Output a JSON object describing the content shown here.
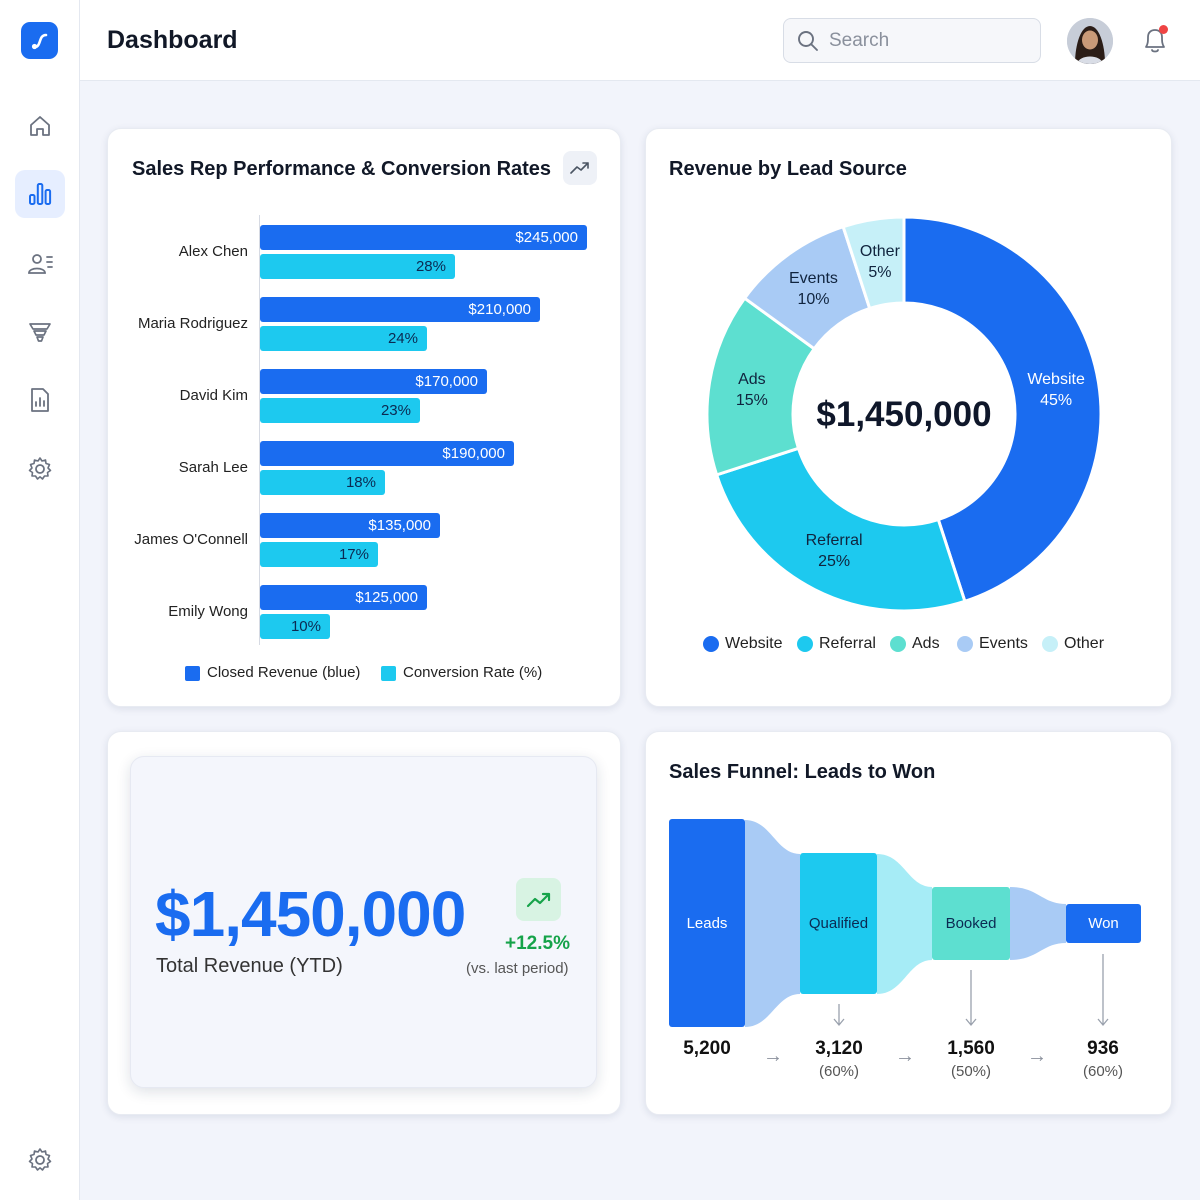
{
  "header": {
    "title": "Dashboard",
    "search_placeholder": "Search"
  },
  "sidebar": {
    "items": [
      {
        "icon": "home-icon",
        "active": false
      },
      {
        "icon": "bar-chart-icon",
        "active": true
      },
      {
        "icon": "users-icon",
        "active": false
      },
      {
        "icon": "funnel-icon",
        "active": false
      },
      {
        "icon": "report-icon",
        "active": false
      },
      {
        "icon": "gear-icon",
        "active": false
      }
    ],
    "bottom_icon": "gear-icon"
  },
  "colors": {
    "primary": "#1a6cf0",
    "cyan": "#1dc9ef",
    "teal": "#5ddfd0",
    "light_blue": "#a9cbf5",
    "pale_cyan": "#c6f0f8",
    "positive": "#16a34a"
  },
  "rep_performance": {
    "title": "Sales Rep Performance & Conversion Rates",
    "legend": [
      "Closed Revenue (blue)",
      "Conversion Rate (%)"
    ],
    "reps": [
      {
        "name": "Alex Chen",
        "revenue_label": "$245,000",
        "conversion_label": "28%"
      },
      {
        "name": "Maria Rodriguez",
        "revenue_label": "$210,000",
        "conversion_label": "24%"
      },
      {
        "name": "David Kim",
        "revenue_label": "$170,000",
        "conversion_label": "23%"
      },
      {
        "name": "Sarah Lee",
        "revenue_label": "$190,000",
        "conversion_label": "18%"
      },
      {
        "name": "James O'Connell",
        "revenue_label": "$135,000",
        "conversion_label": "17%"
      },
      {
        "name": "Emily Wong",
        "revenue_label": "$125,000",
        "conversion_label": "10%"
      }
    ]
  },
  "revenue_by_source": {
    "title": "Revenue by Lead Source",
    "center_label": "$1,450,000",
    "slices": [
      {
        "name": "Website",
        "pct_label": "45%"
      },
      {
        "name": "Referral",
        "pct_label": "25%"
      },
      {
        "name": "Ads",
        "pct_label": "15%"
      },
      {
        "name": "Events",
        "pct_label": "10%"
      },
      {
        "name": "Other",
        "pct_label": "5%"
      }
    ],
    "legend": [
      "Website",
      "Referral",
      "Ads",
      "Events",
      "Other"
    ]
  },
  "kpi": {
    "value": "$1,450,000",
    "label": "Total Revenue (YTD)",
    "change": "+12.5%",
    "note": "(vs. last period)",
    "trend_icon": "trend-up-icon"
  },
  "funnel": {
    "title": "Sales Funnel: Leads to Won",
    "stages": [
      {
        "name": "Leads",
        "count": "5,200",
        "pct": ""
      },
      {
        "name": "Qualified",
        "count": "3,120",
        "pct": "(60%)"
      },
      {
        "name": "Booked",
        "count": "1,560",
        "pct": "(50%)"
      },
      {
        "name": "Won",
        "count": "936",
        "pct": "(60%)"
      }
    ]
  },
  "chart_data": [
    {
      "type": "bar",
      "orientation": "horizontal",
      "title": "Sales Rep Performance & Conversion Rates",
      "categories": [
        "Alex Chen",
        "Maria Rodriguez",
        "David Kim",
        "Sarah Lee",
        "James O'Connell",
        "Emily Wong"
      ],
      "series": [
        {
          "name": "Closed Revenue (blue)",
          "values": [
            245000,
            210000,
            170000,
            190000,
            135000,
            125000
          ]
        },
        {
          "name": "Conversion Rate (%)",
          "values": [
            28,
            24,
            23,
            18,
            17,
            10
          ]
        }
      ],
      "legend": "bottom"
    },
    {
      "type": "pie",
      "donut": true,
      "title": "Revenue by Lead Source",
      "categories": [
        "Website",
        "Referral",
        "Ads",
        "Events",
        "Other"
      ],
      "values": [
        45,
        25,
        15,
        10,
        5
      ],
      "center_label": "$1,450,000",
      "legend": "bottom"
    },
    {
      "type": "bar",
      "subtype": "funnel",
      "title": "Sales Funnel: Leads to Won",
      "categories": [
        "Leads",
        "Qualified",
        "Booked",
        "Won"
      ],
      "values": [
        5200,
        3120,
        1560,
        936
      ],
      "conversion_pct": [
        null,
        60,
        50,
        60
      ]
    }
  ]
}
